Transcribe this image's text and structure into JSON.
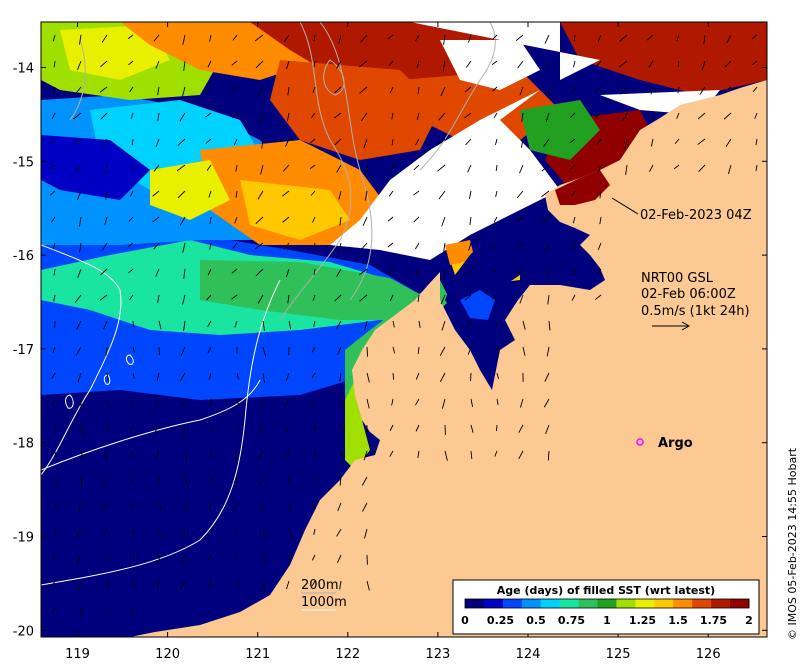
{
  "map": {
    "x_ticks": [
      "119",
      "120",
      "121",
      "122",
      "123",
      "124",
      "125",
      "126"
    ],
    "y_ticks": [
      "-14",
      "-15",
      "-16",
      "-17",
      "-18",
      "-19",
      "-20"
    ],
    "timestamp_label": "02-Feb-2023 04Z",
    "current_source": "NRT00 GSL",
    "current_time": "02-Feb 06:00Z",
    "current_scale": "0.5m/s (1kt 24h)",
    "argo_label": "Argo",
    "contour_labels": [
      "200m",
      "1000m"
    ],
    "credit": "© IMOS 05-Feb-2023 14:55 Hobart"
  },
  "colorbar": {
    "title": "Age (days) of filled SST (wrt latest)",
    "ticks": [
      "0",
      "0.25",
      "0.5",
      "0.75",
      "1",
      "1.25",
      "1.5",
      "1.75",
      "2"
    ],
    "colors": [
      "#00007f",
      "#0000c4",
      "#0046ff",
      "#0092ff",
      "#00d2ff",
      "#19e5a0",
      "#2fc05a",
      "#22a020",
      "#a0e000",
      "#e8f000",
      "#ffc800",
      "#ff8c00",
      "#e04800",
      "#b01800",
      "#900000"
    ]
  },
  "colors": {
    "land": "#fcc993",
    "argo_marker": "#ff00ff",
    "missing": "#ffffff"
  }
}
